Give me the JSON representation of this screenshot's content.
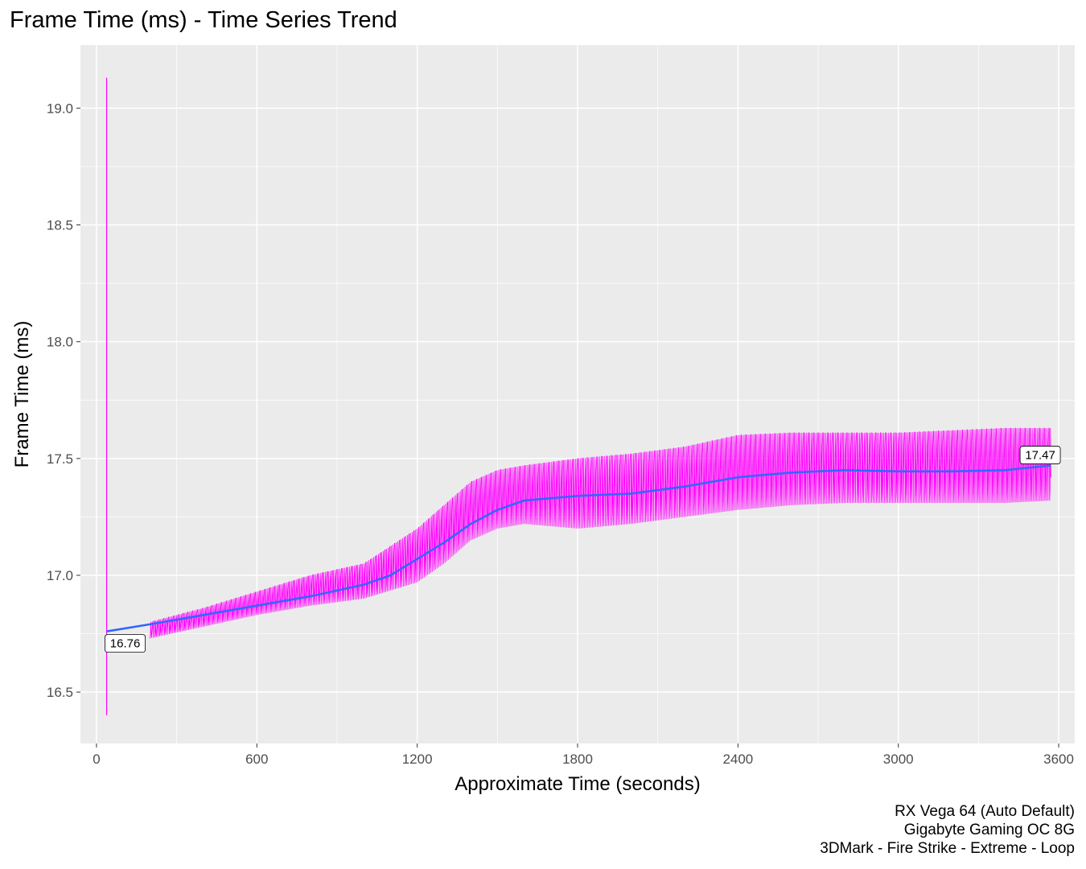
{
  "chart_data": {
    "type": "line",
    "title": "Frame Time (ms) - Time Series Trend",
    "xlabel": "Approximate Time (seconds)",
    "ylabel": "Frame Time (ms)",
    "xlim": [
      -60,
      3660
    ],
    "ylim": [
      16.28,
      19.27
    ],
    "xticks": [
      0,
      600,
      1200,
      1800,
      2400,
      3000,
      3600
    ],
    "xticklabels": [
      "0",
      "600",
      "1200",
      "1800",
      "2400",
      "3000",
      "3600"
    ],
    "yticks": [
      16.5,
      17.0,
      17.5,
      18.0,
      18.5,
      19.0
    ],
    "yticklabels": [
      "16.5",
      "17.0",
      "17.5",
      "18.0",
      "18.5",
      "19.0"
    ],
    "grid": true,
    "legend": "none",
    "series": [
      {
        "role": "raw frame time",
        "color": "#ff00ff",
        "initial_spike": {
          "x": 38,
          "min": 16.4,
          "max": 19.13
        },
        "envelope": {
          "x": [
            200,
            400,
            600,
            800,
            1000,
            1200,
            1300,
            1400,
            1500,
            1600,
            1800,
            2000,
            2200,
            2400,
            2600,
            2800,
            3000,
            3200,
            3400,
            3570
          ],
          "min": [
            16.73,
            16.78,
            16.83,
            16.87,
            16.9,
            16.97,
            17.05,
            17.15,
            17.2,
            17.22,
            17.2,
            17.22,
            17.25,
            17.28,
            17.3,
            17.31,
            17.31,
            17.31,
            17.31,
            17.32
          ],
          "max": [
            16.8,
            16.86,
            16.93,
            17.0,
            17.05,
            17.2,
            17.3,
            17.4,
            17.45,
            17.47,
            17.5,
            17.52,
            17.55,
            17.6,
            17.61,
            17.61,
            17.61,
            17.62,
            17.63,
            17.63
          ]
        }
      },
      {
        "role": "smoothed trend",
        "color": "#3366ff",
        "x": [
          38,
          200,
          400,
          600,
          800,
          1000,
          1100,
          1200,
          1300,
          1400,
          1500,
          1600,
          1700,
          1800,
          2000,
          2200,
          2400,
          2600,
          2800,
          3000,
          3200,
          3400,
          3570
        ],
        "y": [
          16.76,
          16.79,
          16.83,
          16.87,
          16.91,
          16.96,
          17.0,
          17.07,
          17.14,
          17.22,
          17.28,
          17.32,
          17.33,
          17.34,
          17.35,
          17.38,
          17.42,
          17.44,
          17.45,
          17.445,
          17.445,
          17.45,
          17.47
        ]
      }
    ],
    "annotations": [
      {
        "x": 38,
        "y": 16.76,
        "label": "16.76",
        "position": "below"
      },
      {
        "x": 3570,
        "y": 17.47,
        "label": "17.47",
        "position": "above"
      }
    ]
  },
  "caption": {
    "line1": "RX Vega 64 (Auto Default)",
    "line2": "Gigabyte Gaming OC 8G",
    "line3": "3DMark - Fire Strike - Extreme - Loop"
  }
}
